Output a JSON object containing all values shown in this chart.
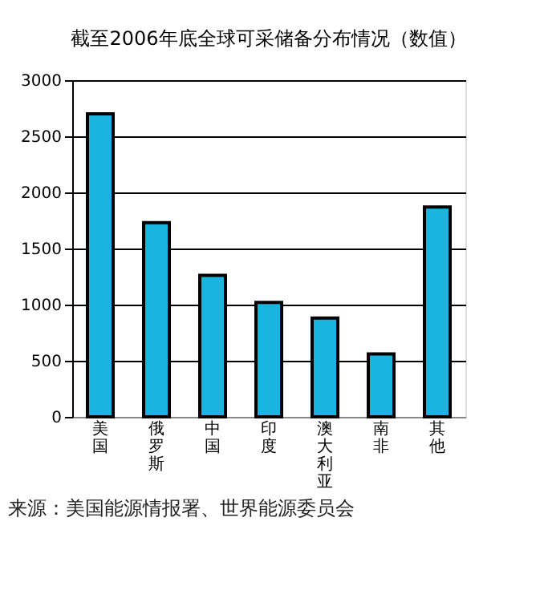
{
  "chart_data": {
    "type": "bar",
    "title": "截至2006年底全球可采储备分布情况（数值）",
    "categories": [
      "美国",
      "俄罗斯",
      "中国",
      "印度",
      "澳大利亚",
      "南非",
      "其他"
    ],
    "values": [
      2700,
      1730,
      1260,
      1020,
      880,
      560,
      1870
    ],
    "color": "#19b5e0",
    "ylim": [
      0,
      3000
    ],
    "yticks": [
      0,
      500,
      1000,
      1500,
      2000,
      2500,
      3000
    ],
    "grid": "y",
    "annotations": [
      "来源：美国能源情报署、世界能源委员会"
    ]
  }
}
